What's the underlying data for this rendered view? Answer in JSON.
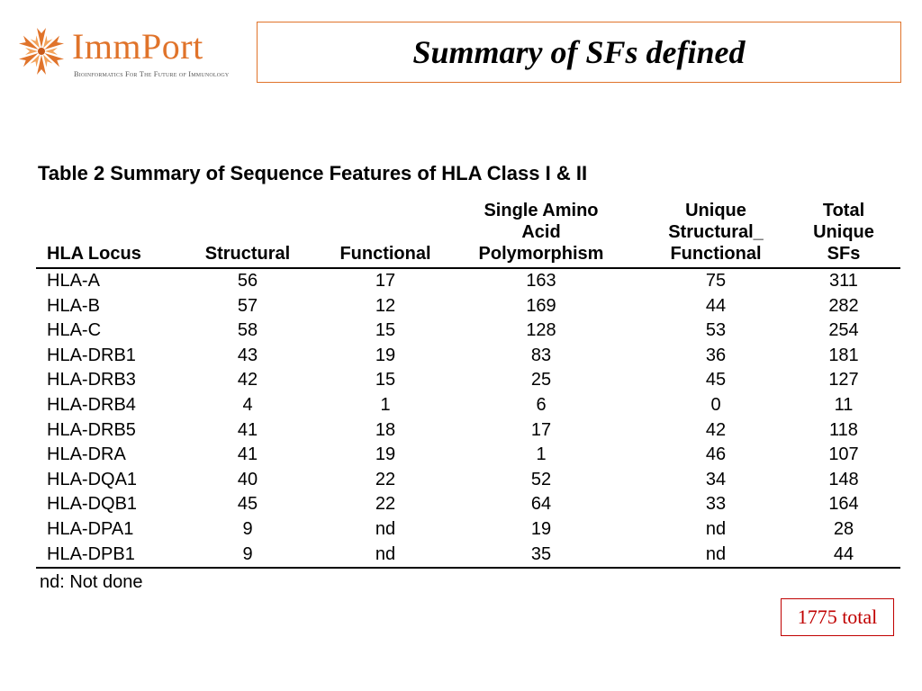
{
  "logo": {
    "wordmark": "ImmPort",
    "tagline": "Bioinformatics For The Future of Immunology",
    "icon": "immport-star-icon",
    "brand_color": "#e0732a"
  },
  "slide": {
    "title": "Summary of SFs defined"
  },
  "table": {
    "caption": "Table 2 Summary of Sequence Features of HLA Class I & II",
    "headers": [
      [
        "HLA Locus"
      ],
      [
        "Structural"
      ],
      [
        "Functional"
      ],
      [
        "Single Amino",
        "Acid",
        "Polymorphism"
      ],
      [
        "Unique",
        "Structural_",
        "Functional"
      ],
      [
        "Total",
        "Unique",
        "SFs"
      ]
    ],
    "rows": [
      [
        "HLA-A",
        "56",
        "17",
        "163",
        "75",
        "311"
      ],
      [
        "HLA-B",
        "57",
        "12",
        "169",
        "44",
        "282"
      ],
      [
        "HLA-C",
        "58",
        "15",
        "128",
        "53",
        "254"
      ],
      [
        "HLA-DRB1",
        "43",
        "19",
        "83",
        "36",
        "181"
      ],
      [
        "HLA-DRB3",
        "42",
        "15",
        "25",
        "45",
        "127"
      ],
      [
        "HLA-DRB4",
        "4",
        "1",
        "6",
        "0",
        "11"
      ],
      [
        "HLA-DRB5",
        "41",
        "18",
        "17",
        "42",
        "118"
      ],
      [
        "HLA-DRA",
        "41",
        "19",
        "1",
        "46",
        "107"
      ],
      [
        "HLA-DQA1",
        "40",
        "22",
        "52",
        "34",
        "148"
      ],
      [
        "HLA-DQB1",
        "45",
        "22",
        "64",
        "33",
        "164"
      ],
      [
        "HLA-DPA1",
        "9",
        "nd",
        "19",
        "nd",
        "28"
      ],
      [
        "HLA-DPB1",
        "9",
        "nd",
        "35",
        "nd",
        "44"
      ]
    ],
    "footnote": "nd: Not done"
  },
  "total_note": {
    "text": "1775 total",
    "color": "#c00000"
  }
}
